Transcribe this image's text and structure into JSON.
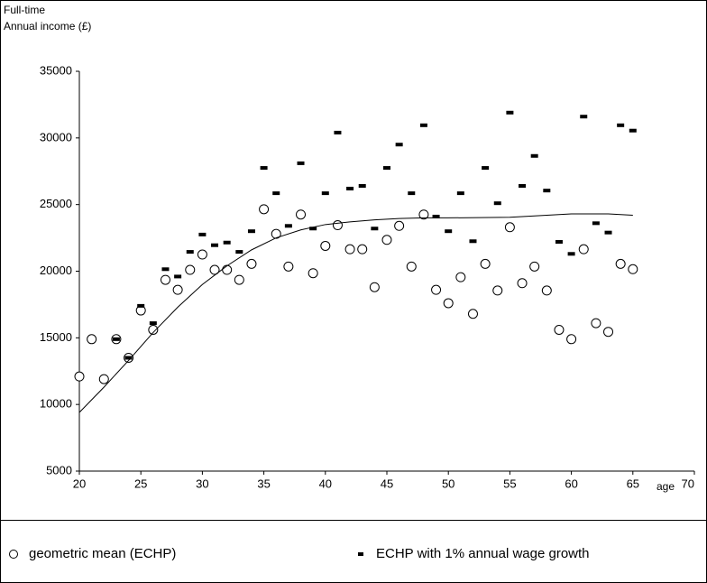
{
  "chart_data": {
    "type": "scatter",
    "ylabel": [
      "Full-time",
      "Annual income (£)"
    ],
    "xlabel": "age",
    "xlim": [
      20,
      70
    ],
    "xticks": [
      20,
      25,
      30,
      35,
      40,
      45,
      50,
      55,
      60,
      65,
      70
    ],
    "ylim": [
      5000,
      35000
    ],
    "yticks": [
      5000,
      10000,
      15000,
      20000,
      25000,
      30000,
      35000
    ],
    "grid": false,
    "series": [
      {
        "name": "geometric mean (ECHP)",
        "marker": "circle",
        "color": "#000000",
        "x": [
          20,
          21,
          22,
          23,
          24,
          25,
          26,
          27,
          28,
          29,
          30,
          31,
          32,
          33,
          34,
          35,
          36,
          37,
          38,
          39,
          40,
          41,
          42,
          43,
          44,
          45,
          46,
          47,
          48,
          49,
          50,
          51,
          52,
          53,
          54,
          55,
          56,
          57,
          58,
          59,
          60,
          61,
          62,
          63,
          64,
          65
        ],
        "values": [
          12100,
          14900,
          11900,
          14900,
          13500,
          17050,
          15600,
          19350,
          18600,
          20100,
          21250,
          20100,
          20100,
          19350,
          20550,
          24650,
          22800,
          20350,
          24250,
          19850,
          21900,
          23450,
          21650,
          21650,
          18800,
          22350,
          23400,
          20350,
          24250,
          18600,
          17600,
          19550,
          16800,
          20550,
          18550,
          23300,
          19100,
          20350,
          18550,
          15600,
          14900,
          21650,
          16100,
          15450,
          20550,
          20150
        ]
      },
      {
        "name": "ECHP with 1% annual wage growth",
        "marker": "dash",
        "color": "#000000",
        "x": [
          23,
          24,
          25,
          26,
          27,
          28,
          29,
          30,
          31,
          32,
          33,
          34,
          35,
          36,
          37,
          38,
          39,
          40,
          41,
          42,
          43,
          44,
          45,
          46,
          47,
          48,
          49,
          50,
          51,
          52,
          53,
          54,
          55,
          56,
          57,
          58,
          59,
          60,
          61,
          62,
          63,
          64,
          65
        ],
        "values": [
          14900,
          13500,
          17400,
          16100,
          20150,
          19600,
          21450,
          22750,
          21950,
          22150,
          21450,
          23000,
          27750,
          25850,
          23400,
          28100,
          23200,
          25850,
          30400,
          26200,
          26400,
          23200,
          27750,
          29500,
          25850,
          30950,
          24100,
          23000,
          25850,
          22250,
          27750,
          25100,
          31900,
          26400,
          28650,
          26050,
          22200,
          21300,
          31600,
          23600,
          22900,
          30950,
          30550
        ]
      },
      {
        "marker": "line",
        "color": "#000000",
        "x": [
          20,
          22,
          24,
          26,
          28,
          30,
          32,
          34,
          36,
          38,
          40,
          42,
          44,
          46,
          48,
          50,
          55,
          58,
          60,
          63,
          65
        ],
        "values": [
          9400,
          11300,
          13300,
          15400,
          17300,
          19000,
          20400,
          21600,
          22500,
          23100,
          23500,
          23700,
          23850,
          23950,
          24000,
          24000,
          24050,
          24200,
          24300,
          24300,
          24200
        ]
      }
    ]
  }
}
